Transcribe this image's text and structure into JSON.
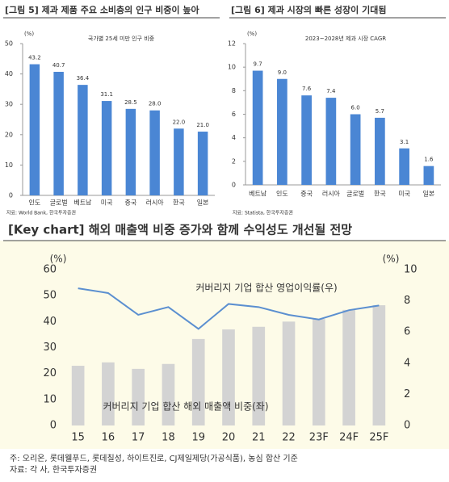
{
  "chart_data": [
    {
      "type": "bar",
      "title": "[그림 5] 제과 제품 주요 소비층의 인구 비중이 높아",
      "subtitle": "국가별 25세 미만 인구 비중",
      "unit": "(%)",
      "categories": [
        "인도",
        "글로벌",
        "베트남",
        "미국",
        "중국",
        "러시아",
        "한국",
        "일본"
      ],
      "values": [
        43.2,
        40.7,
        36.4,
        31.1,
        28.5,
        28.0,
        22.0,
        21.0
      ],
      "value_labels": [
        "43.2",
        "40.7",
        "36.4",
        "31.1",
        "28.5",
        "28.0",
        "22.0",
        "21.0"
      ],
      "color": "#4a86d4",
      "ylim": [
        0,
        50
      ],
      "yticks": [
        0,
        10,
        20,
        30,
        40,
        50
      ],
      "source": "자료: World Bank, 한국투자증권"
    },
    {
      "type": "bar",
      "title": "[그림 6] 제과 시장의 빠른 성장이 기대됨",
      "subtitle": "2023~2028년 제과 시장 CAGR",
      "unit": "(%)",
      "categories": [
        "베트남",
        "인도",
        "중국",
        "러시아",
        "글로벌",
        "한국",
        "미국",
        "일본"
      ],
      "values": [
        9.7,
        9.0,
        7.6,
        7.4,
        6.0,
        5.7,
        3.1,
        1.6
      ],
      "value_labels": [
        "9.7",
        "9.0",
        "7.6",
        "7.4",
        "6.0",
        "5.7",
        "3.1",
        "1.6"
      ],
      "color": "#4a86d4",
      "ylim": [
        0,
        12
      ],
      "yticks": [
        0,
        2,
        4,
        6,
        8,
        10,
        12
      ],
      "source": "자료: Statista, 한국투자증권"
    },
    {
      "type": "combo",
      "title": "[Key chart] 해외 매출액 비중 증가와 함께 수익성도 개선될 전망",
      "unit": "(%)",
      "unit2": "(%)",
      "categories": [
        "15",
        "16",
        "17",
        "18",
        "19",
        "20",
        "21",
        "22",
        "23F",
        "24F",
        "25F"
      ],
      "series": [
        {
          "name": "커버리지 기업 합산 해외 매출액 비중(좌)",
          "type": "bar",
          "color": "#d3d3d3",
          "values": [
            23.0,
            24.3,
            21.8,
            23.7,
            33.3,
            37.0,
            38.0,
            40.0,
            41.0,
            44.5,
            46.3
          ]
        },
        {
          "name": "커버리지 기업 합산 영업이익률(우)",
          "type": "line",
          "axis": "y2",
          "color": "#5b8fd0",
          "values": [
            8.8,
            8.5,
            7.1,
            7.6,
            6.2,
            7.8,
            7.6,
            7.1,
            6.8,
            7.4,
            7.7
          ]
        }
      ],
      "ylim": [
        0,
        60
      ],
      "yticks": [
        0,
        10,
        20,
        30,
        40,
        50,
        60
      ],
      "y2lim": [
        0,
        10
      ],
      "y2ticks": [
        0,
        2,
        4,
        6,
        8,
        10
      ],
      "notes": [
        "주: 오리온, 롯데웰푸드, 롯데칠성, 하이트진로, CJ제일제당(가공식품), 농심 합산 기준",
        "자료: 각 사, 한국투자증권"
      ]
    }
  ]
}
